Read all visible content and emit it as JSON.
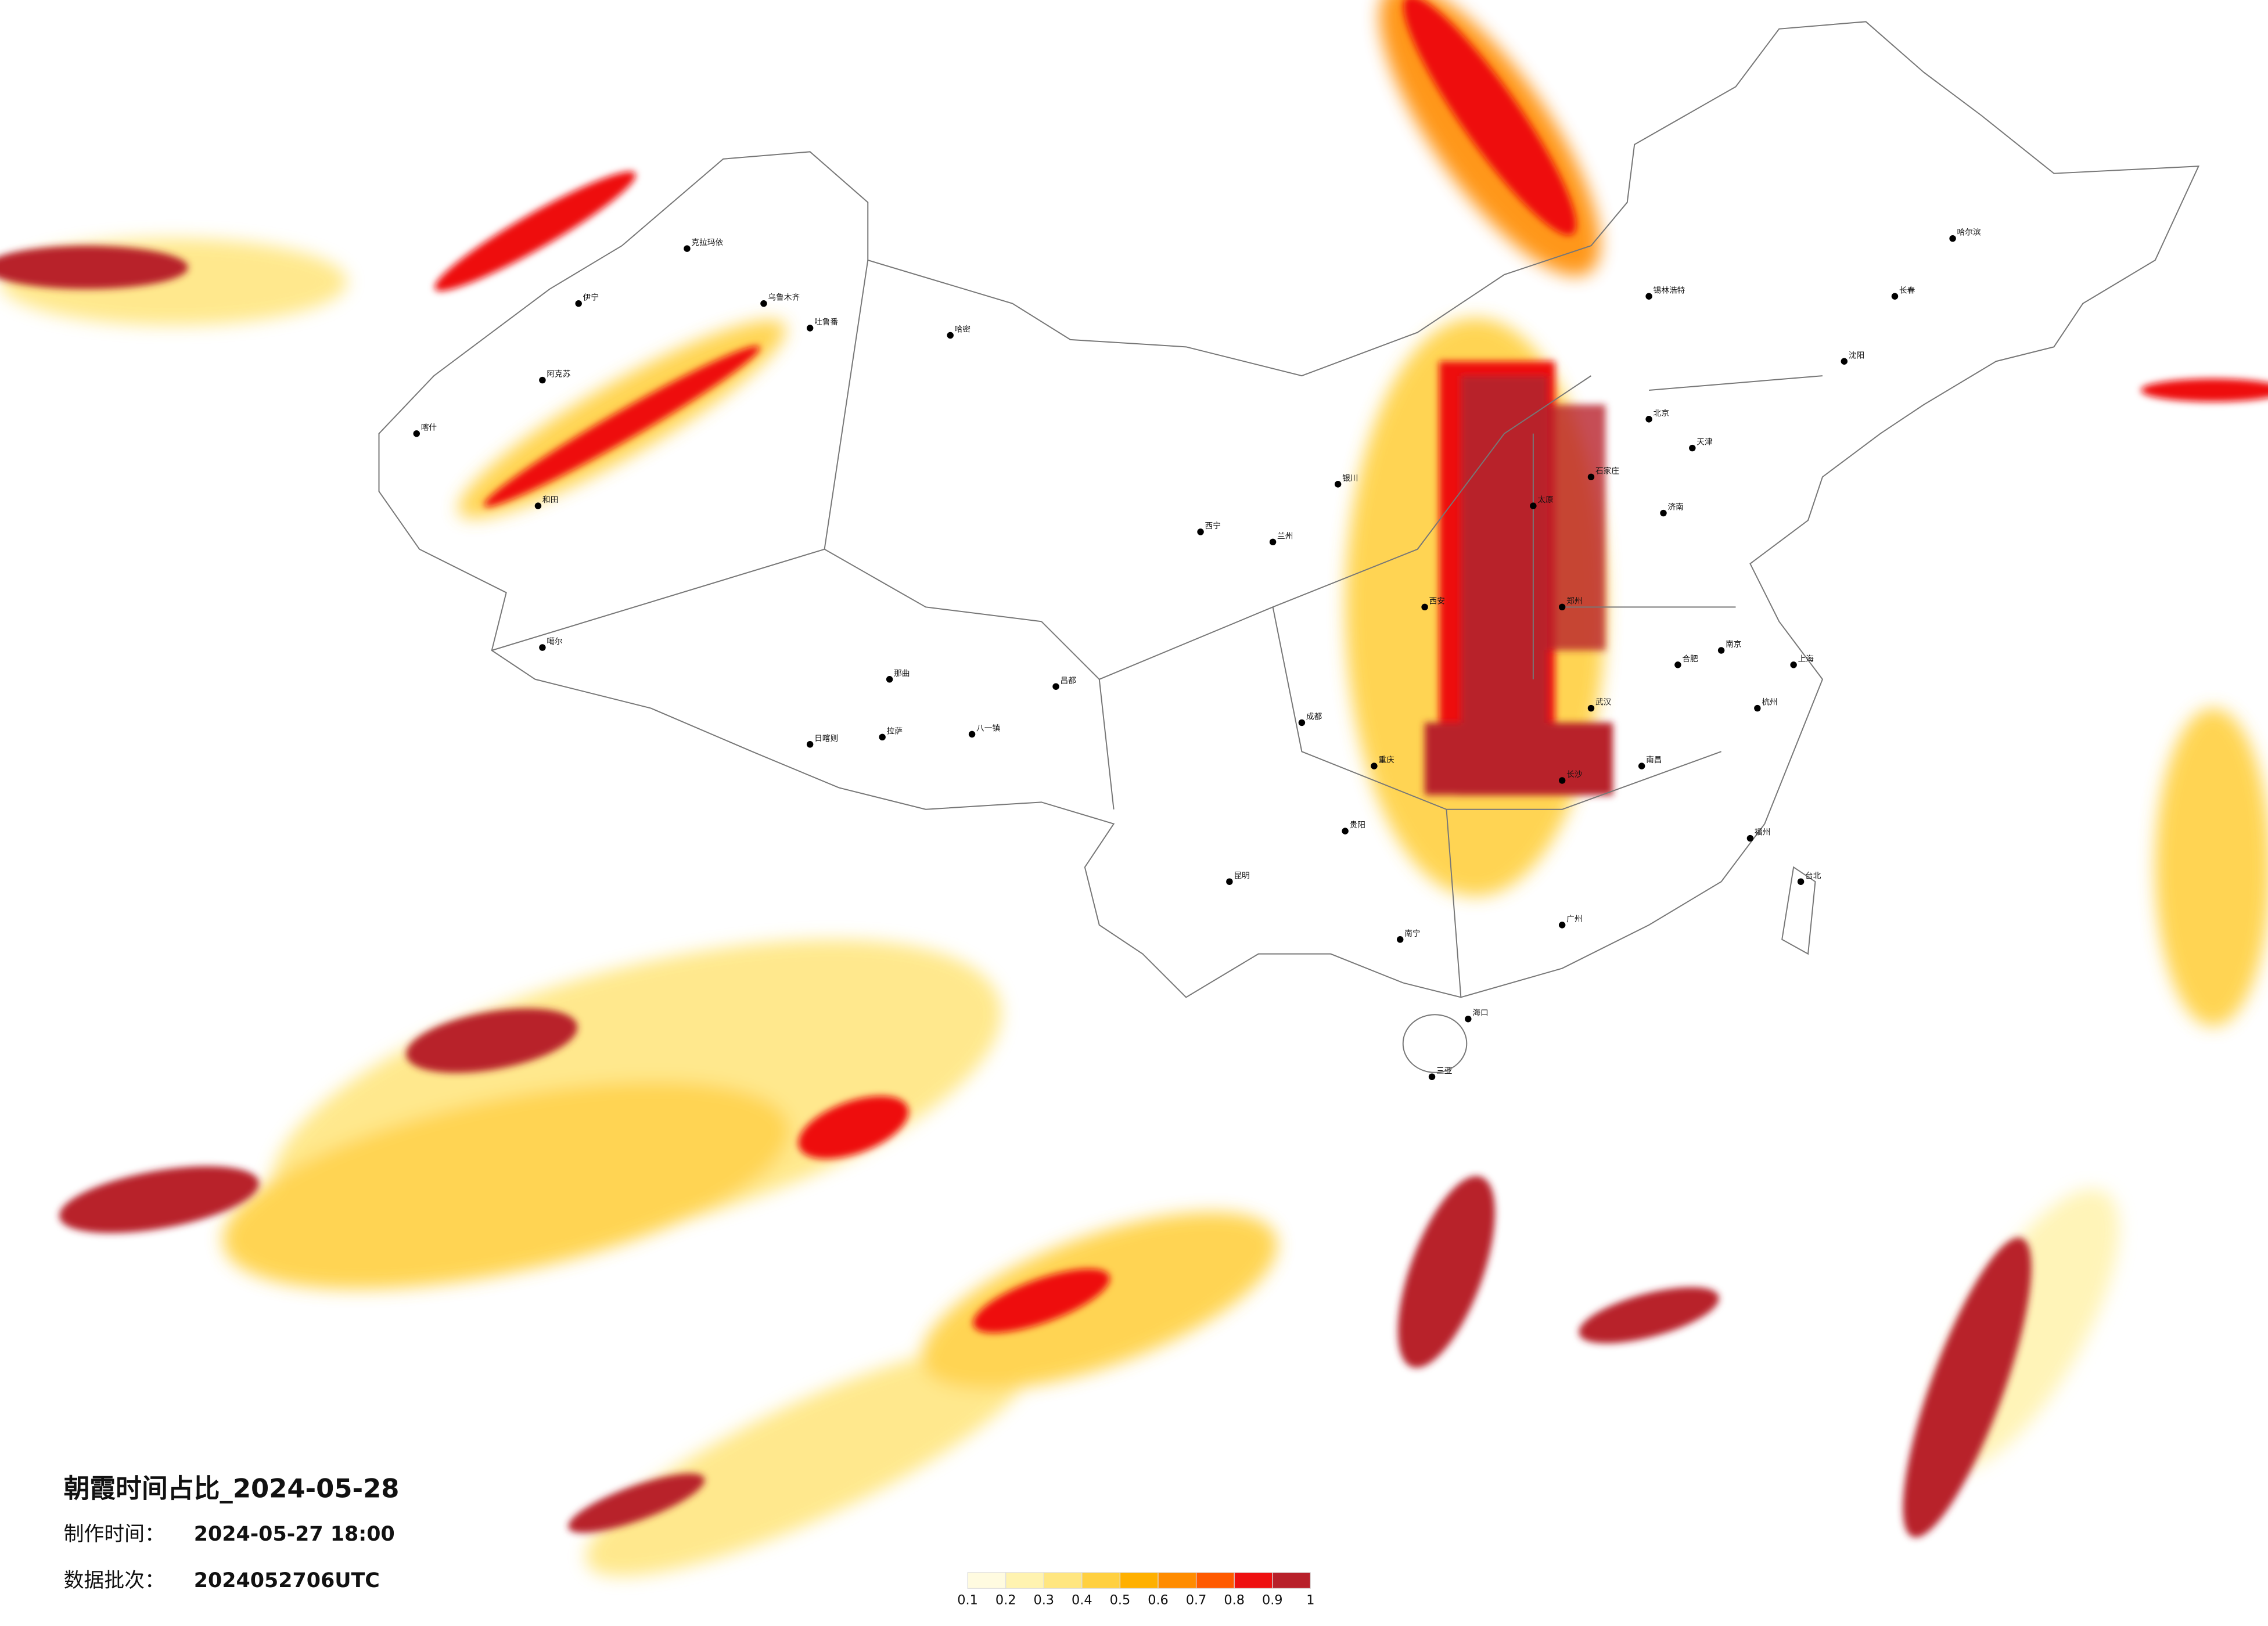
{
  "header": {
    "title": "朝霞时间占比_2024-05-28",
    "made_label": "制作时间：",
    "made_value": "2024-05-27 18:00",
    "batch_label": "数据批次：",
    "batch_value": "2024052706UTC"
  },
  "legend": {
    "colors": [
      "#fffbe0",
      "#fff3b0",
      "#ffe680",
      "#ffd040",
      "#ffb000",
      "#ff8c00",
      "#ff5a00",
      "#ee1010",
      "#b8202a"
    ],
    "ticks": [
      0.1,
      0.2,
      0.3,
      0.4,
      0.5,
      0.6,
      0.7,
      0.8,
      0.9,
      1
    ]
  },
  "cities": [
    "克拉玛依",
    "乌鲁木齐",
    "吐鲁番",
    "哈密",
    "伊宁",
    "阿克苏",
    "喀什",
    "和田",
    "噶尔",
    "日喀则",
    "拉萨",
    "那曲",
    "八一镇",
    "昌都",
    "西宁",
    "兰州",
    "银川",
    "锡林浩特",
    "北京",
    "天津",
    "石家庄",
    "太原",
    "济南",
    "郑州",
    "西安",
    "成都",
    "重庆",
    "贵阳",
    "昆明",
    "南宁",
    "广州",
    "福州",
    "南京",
    "上海",
    "杭州",
    "武汉",
    "长沙",
    "南昌",
    "合肥",
    "沈阳",
    "长春",
    "哈尔滨",
    "海口",
    "三亚",
    "台北"
  ]
}
